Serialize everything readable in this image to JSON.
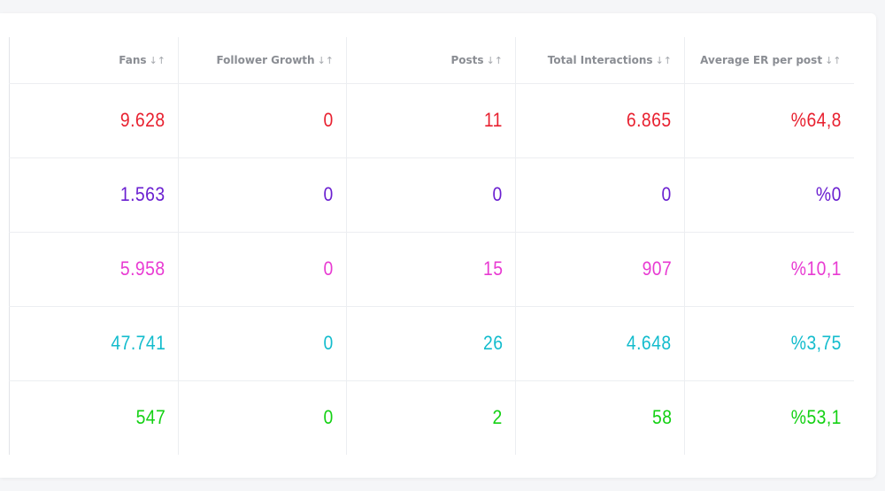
{
  "table": {
    "columns": [
      {
        "label": "Fans",
        "sort_icon": "↓↑"
      },
      {
        "label": "Follower Growth",
        "sort_icon": "↓↑"
      },
      {
        "label": "Posts",
        "sort_icon": "↓↑"
      },
      {
        "label": "Total Interactions",
        "sort_icon": "↓↑"
      },
      {
        "label": "Average ER per post",
        "sort_icon": "↓↑"
      }
    ],
    "rows": [
      {
        "color": "#e8202f",
        "cells": [
          "9.628",
          "0",
          "11",
          "6.865",
          "%64,8"
        ]
      },
      {
        "color": "#6a1fd0",
        "cells": [
          "1.563",
          "0",
          "0",
          "0",
          "%0"
        ]
      },
      {
        "color": "#e83ad2",
        "cells": [
          "5.958",
          "0",
          "15",
          "907",
          "%10,1"
        ]
      },
      {
        "color": "#13bccd",
        "cells": [
          "47.741",
          "0",
          "26",
          "4.648",
          "%3,75"
        ]
      },
      {
        "color": "#13d113",
        "cells": [
          "547",
          "0",
          "2",
          "58",
          "%53,1"
        ]
      }
    ]
  }
}
